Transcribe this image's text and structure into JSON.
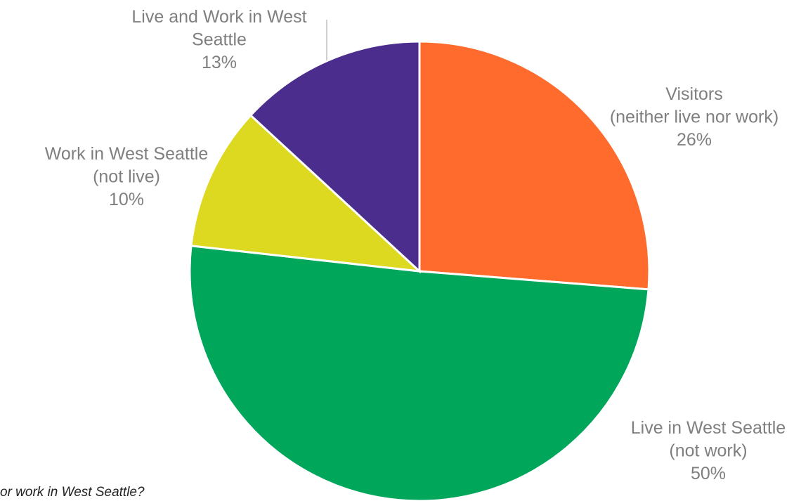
{
  "caption": "or work in West Seattle?",
  "chart_data": {
    "type": "pie",
    "title": "",
    "start_angle_deg": 0,
    "direction": "clockwise",
    "slices": [
      {
        "name": "Visitors",
        "label_lines": [
          "Visitors",
          "(neither live nor work)"
        ],
        "value": 26,
        "value_label": "26%",
        "color": "#FF6B2C"
      },
      {
        "name": "Live in West Seattle (not work)",
        "label_lines": [
          "Live in West Seattle",
          "(not work)"
        ],
        "value": 50,
        "value_label": "50%",
        "color": "#00A65A"
      },
      {
        "name": "Work in West Seattle (not live)",
        "label_lines": [
          "Work in West Seattle",
          "(not live)"
        ],
        "value": 10,
        "value_label": "10%",
        "color": "#DDD820"
      },
      {
        "name": "Live and Work in West Seattle",
        "label_lines": [
          "Live and Work in West",
          "Seattle"
        ],
        "value": 13,
        "value_label": "13%",
        "color": "#4A2D8C"
      }
    ]
  }
}
